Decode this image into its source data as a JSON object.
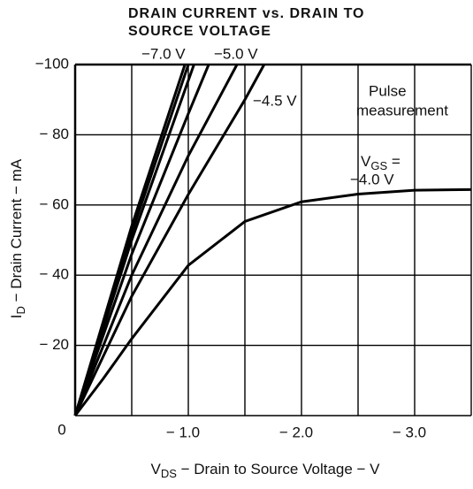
{
  "chart_data": {
    "type": "line",
    "title": [
      "DRAIN CURRENT vs. DRAIN TO",
      "SOURCE VOLTAGE"
    ],
    "xlabel": {
      "main": "V",
      "sub": "DS",
      "rest": " − Drain to Source Voltage − V"
    },
    "ylabel": {
      "main": "I",
      "sub": "D",
      "rest": " − Drain Current − mA"
    },
    "xlim": [
      0,
      -3.5
    ],
    "ylim": [
      0,
      -100
    ],
    "xticks": [
      {
        "value": -1.0,
        "label": "− 1.0"
      },
      {
        "value": -2.0,
        "label": "− 2.0"
      },
      {
        "value": -3.0,
        "label": "− 3.0"
      }
    ],
    "yticks": [
      0,
      {
        "value": -20,
        "label": "− 20"
      },
      {
        "value": -40,
        "label": "− 40"
      },
      {
        "value": -60,
        "label": "− 60"
      },
      {
        "value": -80,
        "label": "− 80"
      },
      {
        "value": -100,
        "label": "−100"
      }
    ],
    "x_minor_grid": [
      -0.5,
      -1.5,
      -2.5,
      -3.5
    ],
    "grid": true,
    "color": "#000000",
    "annotations": {
      "note": [
        "Pulse",
        "measurement"
      ],
      "vgs_main": "V",
      "vgs_sub": "GS",
      "vgs_eq": " ="
    },
    "series": [
      {
        "name": "−4.0 V",
        "x": [
          0,
          -0.25,
          -0.5,
          -1.0,
          -1.5,
          -2.0,
          -2.5,
          -3.0,
          -3.5
        ],
        "values": [
          0,
          -10.6,
          -21.9,
          -42.8,
          -55.3,
          -60.9,
          -63.1,
          -64.2,
          -64.4
        ]
      },
      {
        "name": "−4.5 V",
        "x": [
          0,
          -0.5,
          -1.0,
          -1.5,
          -1.67
        ],
        "values": [
          0,
          -34,
          -63,
          -90,
          -100
        ]
      },
      {
        "name": "−5.0 V",
        "x": [
          0,
          -0.5,
          -1.0,
          -1.43
        ],
        "values": [
          0,
          -40,
          -74,
          -100
        ]
      },
      {
        "x": [
          0,
          -0.5,
          -1.0,
          -1.18
        ],
        "values": [
          0,
          -46,
          -86,
          -100
        ]
      },
      {
        "x": [
          0,
          -0.5,
          -1.05
        ],
        "values": [
          0,
          -50,
          -100
        ]
      },
      {
        "x": [
          0,
          -0.5,
          -1.0
        ],
        "values": [
          0,
          -52,
          -100
        ]
      },
      {
        "name": "−7.0 V",
        "x": [
          0,
          -0.5,
          -0.97
        ],
        "values": [
          0,
          -54,
          -100
        ]
      }
    ]
  }
}
